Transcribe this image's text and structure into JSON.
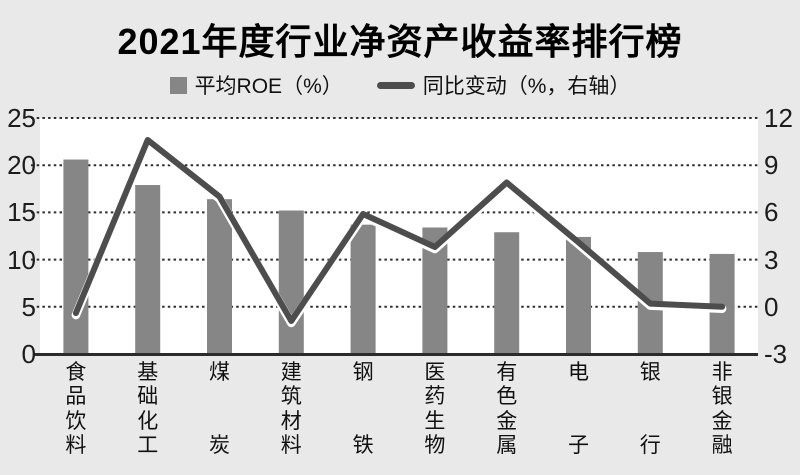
{
  "title": "2021年度行业净资产收益率排行榜",
  "legend": {
    "bar_label": "平均ROE（%）",
    "line_label": "同比变动（%，右轴）"
  },
  "colors": {
    "background": "#e9e9e9",
    "plot_background": "#ffffff",
    "bar": "#868686",
    "line": "#4d4d4d",
    "line_halo": "#ffffff",
    "axis_line": "#2b2b2b",
    "grid_dots": "#2e2e2e",
    "text": "#1c1c1c"
  },
  "chart_data": {
    "type": "bar",
    "title": "2021年度行业净资产收益率排行榜",
    "categories": [
      "食品饮料",
      "基础化工",
      "煤炭",
      "建筑材料",
      "钢铁",
      "医药生物",
      "有色金属",
      "电子",
      "银行",
      "非银金融"
    ],
    "series": [
      {
        "name": "平均ROE（%）",
        "type": "bar",
        "axis": "left",
        "values": [
          20.6,
          17.9,
          16.4,
          15.2,
          13.7,
          13.4,
          12.9,
          12.4,
          10.8,
          10.6
        ]
      },
      {
        "name": "同比变动（%，右轴）",
        "type": "line",
        "axis": "right",
        "values": [
          -0.4,
          10.6,
          7.0,
          -0.9,
          5.9,
          3.8,
          7.9,
          4.1,
          0.2,
          0.0
        ]
      }
    ],
    "left_axis": {
      "ticks": [
        "25",
        "20",
        "15",
        "10",
        "5",
        "0"
      ],
      "min": 0,
      "max": 25
    },
    "right_axis": {
      "ticks": [
        "12",
        "9",
        "6",
        "3",
        "0",
        "-3"
      ],
      "min": -3,
      "max": 12
    },
    "grid": "horizontal-dotted",
    "legend_position": "top"
  }
}
